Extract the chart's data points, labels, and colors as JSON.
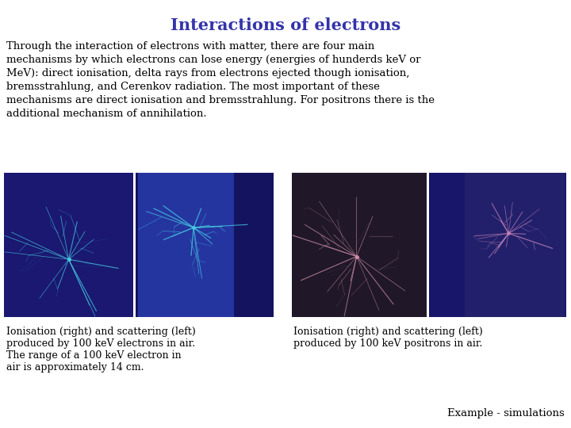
{
  "title": "Interactions of electrons",
  "title_color": "#3333AA",
  "title_fontsize": 15,
  "body_text": "Through the interaction of electrons with matter, there are four main\nmechanisms by which electrons can lose energy (energies of hunderds keV or\nMeV): direct ionisation, delta rays from electrons ejected though ionisation,\nbremsstrahlung, and Cerenkov radiation. The most important of these\nmechanisms are direct ionisation and bremsstrahlung. For positrons there is the\nadditional mechanism of annihilation.",
  "body_fontsize": 9.5,
  "caption_left": "Ionisation (right) and scattering (left)\nproduced by 100 keV electrons in air.\nThe range of a 100 keV electron in\nair is approximately 14 cm.",
  "caption_right": "Ionisation (right) and scattering (left)\nproduced by 100 keV positrons in air.",
  "caption_fontsize": 9.0,
  "example_text": "Example - simulations",
  "example_fontsize": 9.5,
  "background_color": "#ffffff",
  "img1_bg": "#1a1870",
  "img2_outer_bg": "#151450",
  "img2_inner_bg": "#2a2d90",
  "img3_bg": "#201828",
  "img4_outer_bg": "#151870",
  "img4_inner_bg": "#1e1c60",
  "electron_color": "#40d0e8",
  "positron_color": "#d080a0"
}
